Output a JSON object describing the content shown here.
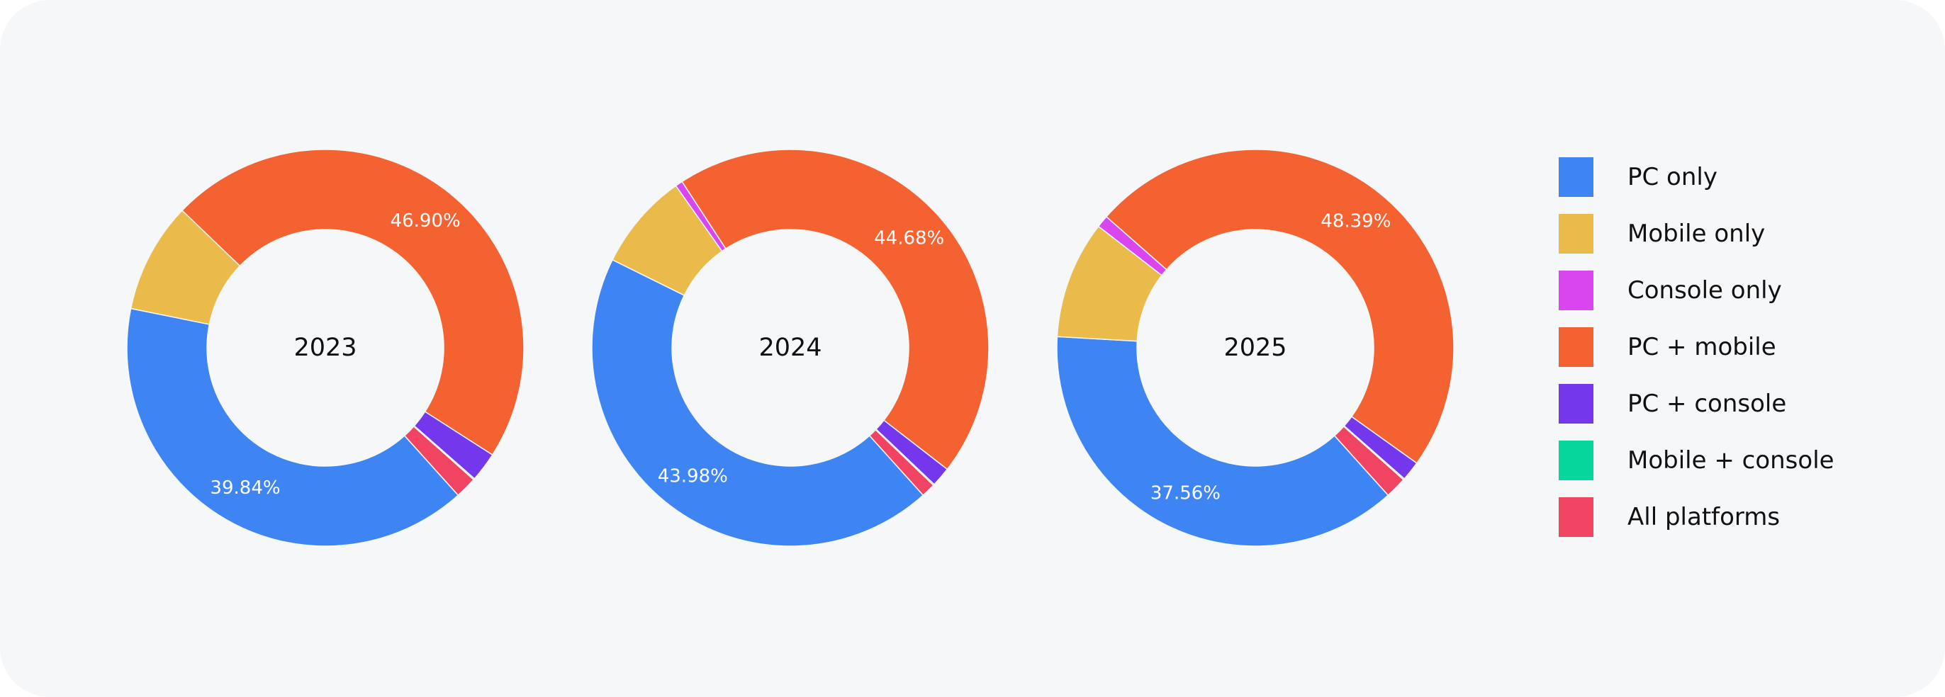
{
  "chart_data": {
    "type": "donut",
    "categories": [
      "PC only",
      "Mobile only",
      "Console only",
      "PC + mobile",
      "PC + console",
      "Mobile + console",
      "All platforms"
    ],
    "colors": [
      "#3e84f3",
      "#eabb4a",
      "#d946ef",
      "#f46231",
      "#7437ec",
      "#06d69b",
      "#f14463"
    ],
    "charts": [
      {
        "center_label": "2023",
        "values": [
          39.84,
          9.0,
          0.0,
          46.9,
          2.4,
          0.1,
          1.76
        ],
        "data_labels": [
          "39.84%",
          "",
          "",
          "46.90%",
          "",
          "",
          ""
        ]
      },
      {
        "center_label": "2024",
        "values": [
          43.98,
          7.9,
          0.6,
          44.68,
          1.6,
          0.1,
          1.14
        ],
        "data_labels": [
          "43.98%",
          "",
          "",
          "44.68%",
          "",
          "",
          ""
        ]
      },
      {
        "center_label": "2025",
        "values": [
          37.56,
          9.6,
          1.0,
          48.39,
          1.6,
          0.1,
          1.75
        ],
        "data_labels": [
          "37.56%",
          "",
          "",
          "48.39%",
          "",
          "",
          ""
        ]
      }
    ],
    "legend_position": "right"
  },
  "legend": {
    "items": [
      {
        "label": "PC only",
        "color": "#3e84f3"
      },
      {
        "label": "Mobile only",
        "color": "#eabb4a"
      },
      {
        "label": "Console only",
        "color": "#d946ef"
      },
      {
        "label": "PC + mobile",
        "color": "#f46231"
      },
      {
        "label": "PC + console",
        "color": "#7437ec"
      },
      {
        "label": "Mobile + console",
        "color": "#06d69b"
      },
      {
        "label": "All platforms",
        "color": "#f14463"
      }
    ]
  }
}
